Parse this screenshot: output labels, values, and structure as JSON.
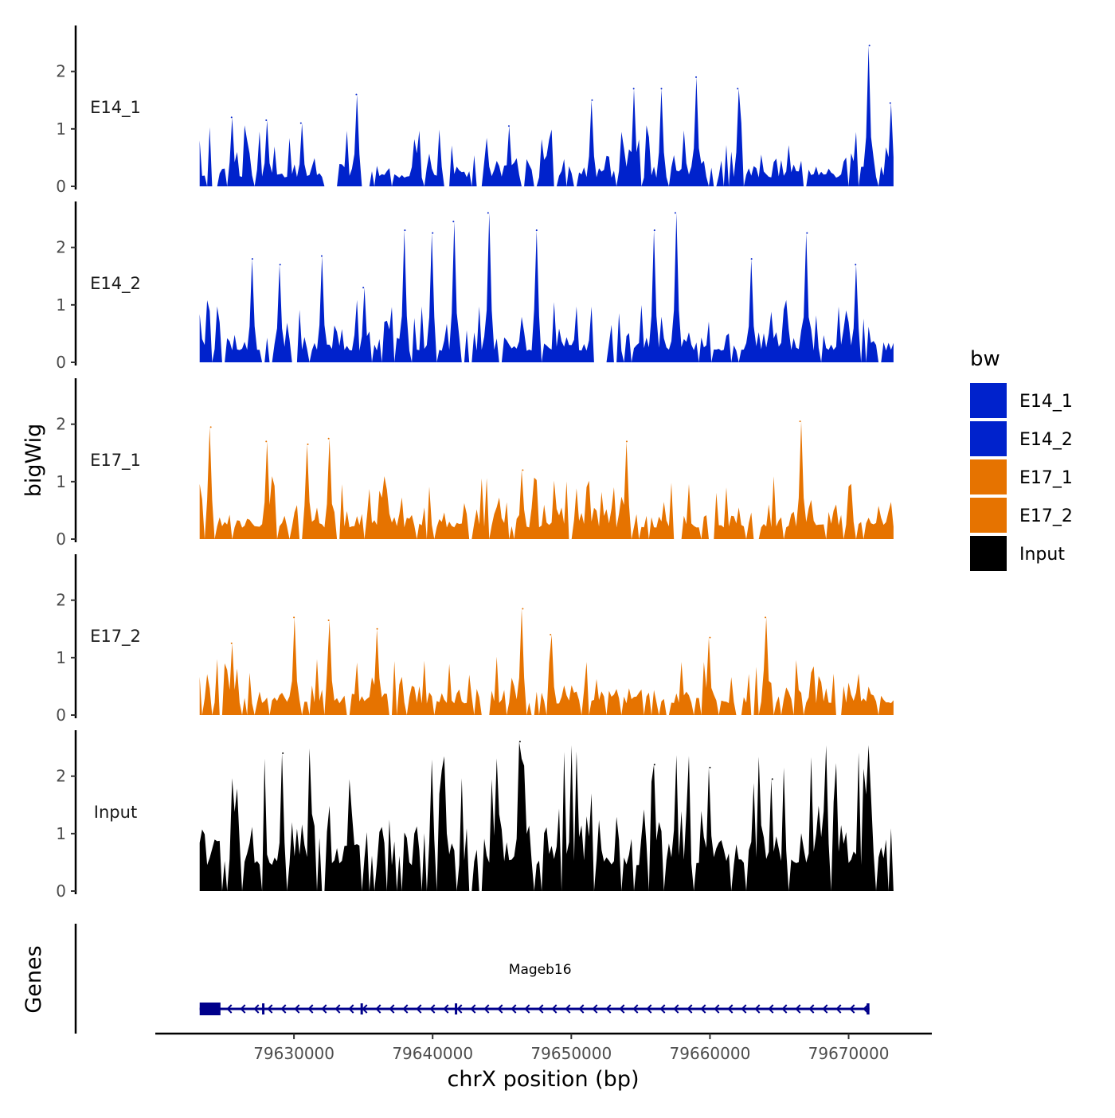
{
  "chart_data": {
    "type": "area",
    "title": "",
    "xlabel": "chrX position (bp)",
    "ylabel": "bigWig",
    "gene_panel_label": "Genes",
    "xlim": [
      79620000,
      79676000
    ],
    "x_start": 79623200,
    "x_end": 79673400,
    "x_ticks": [
      79630000,
      79640000,
      79650000,
      79660000,
      79670000
    ],
    "x_tick_labels": [
      "79630000",
      "79640000",
      "79650000",
      "79660000",
      "79670000"
    ],
    "ylim": [
      0,
      2.8
    ],
    "y_ticks": [
      0,
      1,
      2
    ],
    "y_tick_labels": [
      "0",
      "1",
      "2"
    ],
    "legend": {
      "title": "bw",
      "placement": "right",
      "entries": [
        {
          "label": "E14_1",
          "color": "#0022CC"
        },
        {
          "label": "E14_2",
          "color": "#0022CC"
        },
        {
          "label": "E17_1",
          "color": "#E67300"
        },
        {
          "label": "E17_2",
          "color": "#E67300"
        },
        {
          "label": "Input",
          "color": "#000000"
        }
      ]
    },
    "series": [
      {
        "name": "E14_1",
        "color": "#0022CC",
        "peaks": [
          {
            "x": 79625500,
            "y": 1.2
          },
          {
            "x": 79628000,
            "y": 1.15
          },
          {
            "x": 79630500,
            "y": 1.1
          },
          {
            "x": 79634500,
            "y": 1.6
          },
          {
            "x": 79645500,
            "y": 1.05
          },
          {
            "x": 79651500,
            "y": 1.5
          },
          {
            "x": 79654500,
            "y": 1.7
          },
          {
            "x": 79656500,
            "y": 1.7
          },
          {
            "x": 79659000,
            "y": 1.9
          },
          {
            "x": 79662000,
            "y": 1.7
          },
          {
            "x": 79671500,
            "y": 2.45
          },
          {
            "x": 79673000,
            "y": 1.45
          }
        ],
        "base_max": 0.75,
        "base_min": 0.15,
        "gaps": [
          [
            79624100,
            79624600
          ],
          [
            79627000,
            79627300
          ],
          [
            79632200,
            79632600
          ],
          [
            79634900,
            79635600
          ],
          [
            79640800,
            79641100
          ],
          [
            79643100,
            79643400
          ],
          [
            79647200,
            79647500
          ],
          [
            79650200,
            79650500
          ],
          [
            79660300,
            79660600
          ],
          [
            79666700,
            79667000
          ]
        ],
        "seed": 11
      },
      {
        "name": "E14_2",
        "color": "#0022CC",
        "peaks": [
          {
            "x": 79627000,
            "y": 1.8
          },
          {
            "x": 79629000,
            "y": 1.7
          },
          {
            "x": 79632000,
            "y": 1.85
          },
          {
            "x": 79635000,
            "y": 1.3
          },
          {
            "x": 79638000,
            "y": 2.3
          },
          {
            "x": 79640000,
            "y": 2.25
          },
          {
            "x": 79641500,
            "y": 2.45
          },
          {
            "x": 79644000,
            "y": 2.6
          },
          {
            "x": 79647500,
            "y": 2.3
          },
          {
            "x": 79656000,
            "y": 2.3
          },
          {
            "x": 79657500,
            "y": 2.6
          },
          {
            "x": 79663000,
            "y": 1.8
          },
          {
            "x": 79667000,
            "y": 2.25
          },
          {
            "x": 79670500,
            "y": 1.7
          }
        ],
        "base_max": 0.75,
        "base_min": 0.2,
        "gaps": [
          [
            79624800,
            79625100
          ],
          [
            79629900,
            79630300
          ],
          [
            79636200,
            79636500
          ],
          [
            79652000,
            79652600
          ],
          [
            79672000,
            79672400
          ]
        ],
        "seed": 23
      },
      {
        "name": "E17_1",
        "color": "#E67300",
        "peaks": [
          {
            "x": 79624000,
            "y": 1.95
          },
          {
            "x": 79628000,
            "y": 1.7
          },
          {
            "x": 79631000,
            "y": 1.65
          },
          {
            "x": 79632500,
            "y": 1.75
          },
          {
            "x": 79646500,
            "y": 1.2
          },
          {
            "x": 79654000,
            "y": 1.7
          },
          {
            "x": 79666500,
            "y": 2.05
          }
        ],
        "base_max": 0.75,
        "base_min": 0.2,
        "gaps": [
          [
            79623600,
            79623800
          ],
          [
            79630400,
            79630700
          ],
          [
            79639500,
            79639700
          ],
          [
            79649800,
            79650100
          ],
          [
            79657300,
            79657600
          ],
          [
            79663300,
            79663500
          ]
        ],
        "seed": 37
      },
      {
        "name": "E17_2",
        "color": "#E67300",
        "peaks": [
          {
            "x": 79625500,
            "y": 1.25
          },
          {
            "x": 79630000,
            "y": 1.7
          },
          {
            "x": 79632500,
            "y": 1.65
          },
          {
            "x": 79636000,
            "y": 1.5
          },
          {
            "x": 79646500,
            "y": 1.85
          },
          {
            "x": 79648500,
            "y": 1.4
          },
          {
            "x": 79660000,
            "y": 1.35
          },
          {
            "x": 79664000,
            "y": 1.7
          }
        ],
        "base_max": 0.7,
        "base_min": 0.2,
        "gaps": [
          [
            79624500,
            79624800
          ],
          [
            79633700,
            79634000
          ],
          [
            79643400,
            79644000
          ],
          [
            79662000,
            79662300
          ],
          [
            79665000,
            79665300
          ],
          [
            79669000,
            79669300
          ]
        ],
        "seed": 53
      },
      {
        "name": "Input",
        "color": "#000000",
        "peaks": [
          {
            "x": 79629200,
            "y": 2.4
          },
          {
            "x": 79646300,
            "y": 2.6
          },
          {
            "x": 79656000,
            "y": 2.2
          },
          {
            "x": 79660000,
            "y": 2.15
          },
          {
            "x": 79664500,
            "y": 1.95
          }
        ],
        "base_max": 1.7,
        "base_min": 0.45,
        "gaps": [],
        "seed": 71
      }
    ],
    "genes": [
      {
        "name": "Mageb16",
        "start": 79623200,
        "end": 79671500,
        "strand": "-",
        "color": "#00008B",
        "exons": [
          [
            79623200,
            79624700
          ],
          [
            79627700,
            79627800
          ],
          [
            79634800,
            79634900
          ],
          [
            79641600,
            79641700
          ],
          [
            79671300,
            79671500
          ]
        ]
      }
    ]
  }
}
